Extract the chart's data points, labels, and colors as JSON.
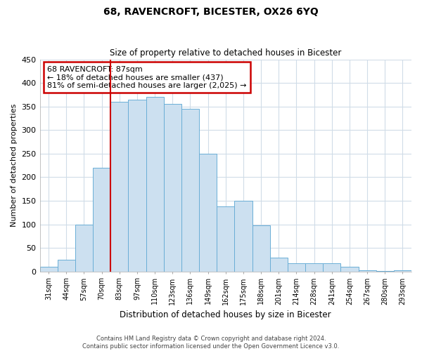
{
  "title": "68, RAVENCROFT, BICESTER, OX26 6YQ",
  "subtitle": "Size of property relative to detached houses in Bicester",
  "xlabel": "Distribution of detached houses by size in Bicester",
  "ylabel": "Number of detached properties",
  "bar_labels": [
    "31sqm",
    "44sqm",
    "57sqm",
    "70sqm",
    "83sqm",
    "97sqm",
    "110sqm",
    "123sqm",
    "136sqm",
    "149sqm",
    "162sqm",
    "175sqm",
    "188sqm",
    "201sqm",
    "214sqm",
    "228sqm",
    "241sqm",
    "254sqm",
    "267sqm",
    "280sqm",
    "293sqm"
  ],
  "bar_values": [
    10,
    25,
    100,
    220,
    360,
    365,
    370,
    355,
    345,
    250,
    138,
    150,
    98,
    30,
    18,
    18,
    18,
    10,
    3,
    1,
    2
  ],
  "bar_color": "#cce0f0",
  "bar_edge_color": "#6aaed6",
  "highlight_index": 4,
  "highlight_line_color": "#cc0000",
  "annotation_title": "68 RAVENCROFT: 87sqm",
  "annotation_line1": "← 18% of detached houses are smaller (437)",
  "annotation_line2": "81% of semi-detached houses are larger (2,025) →",
  "annotation_box_edge": "#cc0000",
  "ylim": [
    0,
    450
  ],
  "yticks": [
    0,
    50,
    100,
    150,
    200,
    250,
    300,
    350,
    400,
    450
  ],
  "footer_line1": "Contains HM Land Registry data © Crown copyright and database right 2024.",
  "footer_line2": "Contains public sector information licensed under the Open Government Licence v3.0.",
  "bg_color": "#ffffff",
  "grid_color": "#d0dce8"
}
